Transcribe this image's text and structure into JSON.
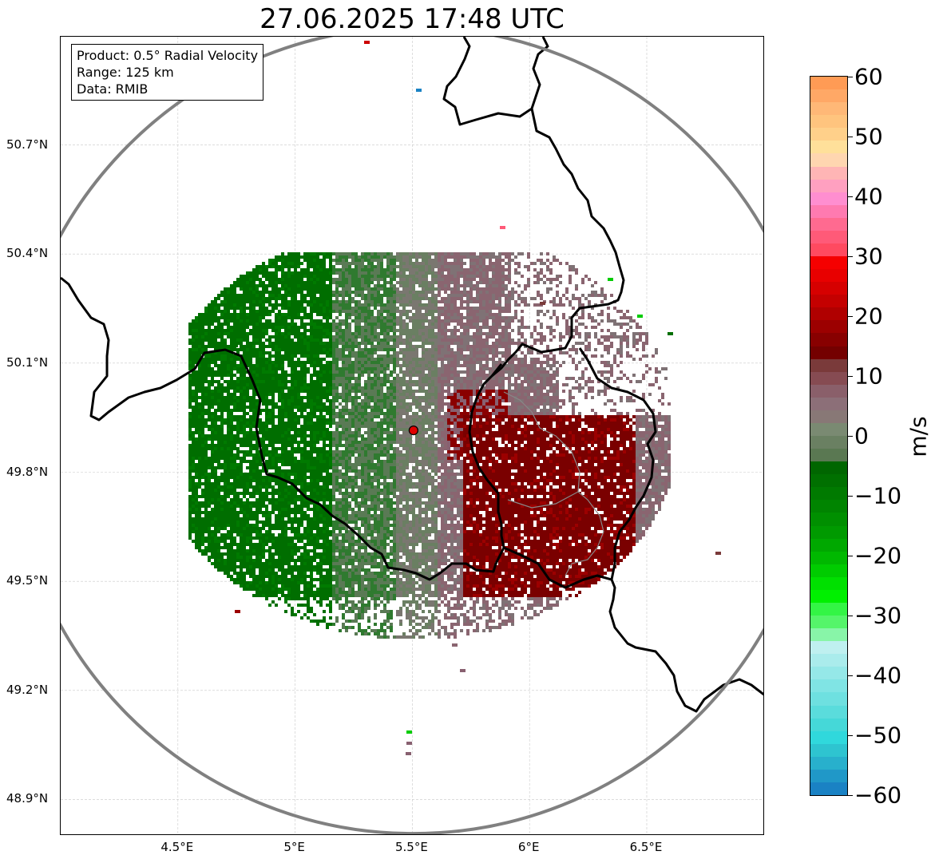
{
  "title": "27.06.2025 17:48 UTC",
  "info_box": {
    "product": "Product: 0.5° Radial Velocity",
    "range": "Range: 125 km",
    "data": "Data: RMIB"
  },
  "map": {
    "lon_range": [
      4.0,
      7.0
    ],
    "lat_range": [
      48.8,
      51.0
    ],
    "lat_ticks": [
      {
        "value": 50.7,
        "label": "50.7°N"
      },
      {
        "value": 50.4,
        "label": "50.4°N"
      },
      {
        "value": 50.1,
        "label": "50.1°N"
      },
      {
        "value": 49.8,
        "label": "49.8°N"
      },
      {
        "value": 49.5,
        "label": "49.5°N"
      },
      {
        "value": 49.2,
        "label": "49.2°N"
      },
      {
        "value": 48.9,
        "label": "48.9°N"
      }
    ],
    "lon_ticks": [
      {
        "value": 4.5,
        "label": "4.5°E"
      },
      {
        "value": 5.0,
        "label": "5°E"
      },
      {
        "value": 5.5,
        "label": "5.5°E"
      },
      {
        "value": 6.0,
        "label": "6°E"
      },
      {
        "value": 6.5,
        "label": "6.5°E"
      }
    ],
    "radar_site": {
      "lon": 5.505,
      "lat": 49.915
    },
    "range_ring_km": 125,
    "colors": {
      "ring": "#808080",
      "border": "#000000",
      "sub_border": "#888888",
      "grid": "#c8c8c8",
      "site_marker": "#e00000"
    }
  },
  "colorbar": {
    "min": -60,
    "max": 60,
    "unit": "m/s",
    "ticks": [
      {
        "value": 60,
        "label": "60"
      },
      {
        "value": 50,
        "label": "50"
      },
      {
        "value": 40,
        "label": "40"
      },
      {
        "value": 30,
        "label": "30"
      },
      {
        "value": 20,
        "label": "20"
      },
      {
        "value": 10,
        "label": "10"
      },
      {
        "value": 0,
        "label": "0"
      },
      {
        "value": -10,
        "label": "−10"
      },
      {
        "value": -20,
        "label": "−20"
      },
      {
        "value": -30,
        "label": "−30"
      },
      {
        "value": -40,
        "label": "−40"
      },
      {
        "value": -50,
        "label": "−50"
      },
      {
        "value": -60,
        "label": "−60"
      }
    ],
    "bands": [
      "#ff9b55",
      "#ffa866",
      "#ffb877",
      "#ffc47e",
      "#ffd08a",
      "#ffe09a",
      "#ffd6b0",
      "#ffb5b5",
      "#ffa0c0",
      "#ff8ed0",
      "#ff7ab0",
      "#ff6a90",
      "#ff5a78",
      "#ff4a60",
      "#f50000",
      "#e80000",
      "#d60000",
      "#c40000",
      "#b00000",
      "#9c0000",
      "#880000",
      "#740000",
      "#7a3a3a",
      "#864b52",
      "#8a5f6a",
      "#8c6f78",
      "#887876",
      "#7a8a72",
      "#6a8062",
      "#5a7852",
      "#006600",
      "#007000",
      "#007a00",
      "#008400",
      "#008f00",
      "#009a00",
      "#00a800",
      "#00b800",
      "#00cc00",
      "#00e000",
      "#00f000",
      "#33f545",
      "#55f56a",
      "#88f5a8",
      "#bff0f0",
      "#aaecec",
      "#95e8e8",
      "#80e4e4",
      "#6ee0e0",
      "#5adcdc",
      "#45d8d8",
      "#30d8dc",
      "#2ec4d0",
      "#28b0cc",
      "#2098c8",
      "#1a82c4"
    ]
  }
}
